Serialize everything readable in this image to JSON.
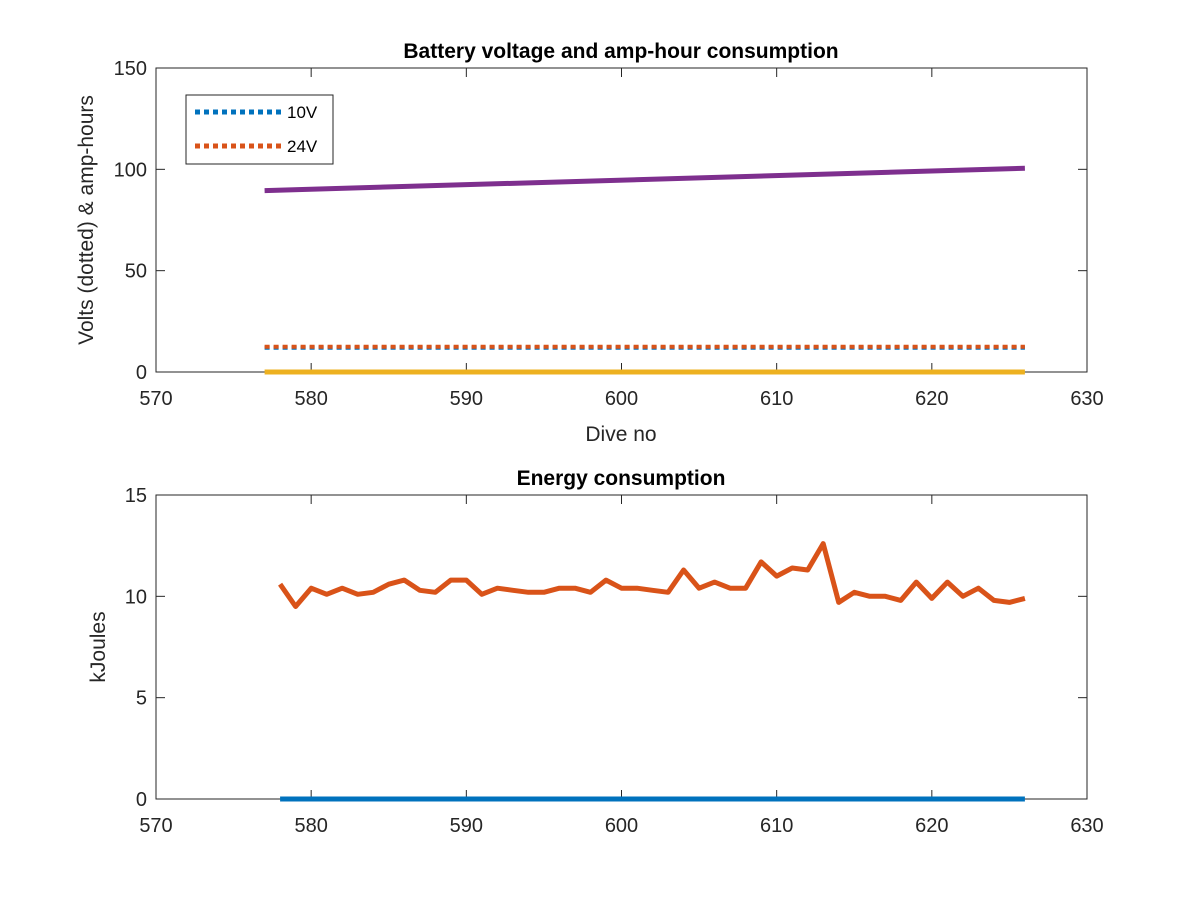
{
  "chart_data": [
    {
      "type": "line",
      "title": "Battery voltage and amp-hour consumption",
      "xlabel": "Dive no",
      "ylabel": "Volts (dotted) & amp-hours",
      "xlim": [
        570,
        630
      ],
      "ylim": [
        0,
        150
      ],
      "xticks": [
        "570",
        "580",
        "590",
        "600",
        "610",
        "620",
        "630"
      ],
      "yticks": [
        "0",
        "50",
        "100",
        "150"
      ],
      "grid": false,
      "legend_position": "top-left",
      "series": [
        {
          "name": "10V",
          "style": "dotted",
          "color": "#0072BD",
          "x": [
            577,
            626
          ],
          "y": [
            12,
            12
          ]
        },
        {
          "name": "24V",
          "style": "dotted",
          "color": "#D95319",
          "x": [
            577,
            626
          ],
          "y": [
            12.5,
            12.5
          ]
        },
        {
          "style": "solid",
          "color": "#7E2F8E",
          "x": [
            577,
            626
          ],
          "y": [
            89.5,
            100.5
          ]
        },
        {
          "style": "solid",
          "color": "#EDB120",
          "x": [
            577,
            626
          ],
          "y": [
            0,
            0
          ]
        }
      ]
    },
    {
      "type": "line",
      "title": "Energy consumption",
      "xlabel": "",
      "ylabel": "kJoules",
      "xlim": [
        570,
        630
      ],
      "ylim": [
        0,
        15
      ],
      "xticks": [
        "570",
        "580",
        "590",
        "600",
        "610",
        "620",
        "630"
      ],
      "yticks": [
        "0",
        "5",
        "10",
        "15"
      ],
      "grid": false,
      "series": [
        {
          "style": "solid",
          "color": "#0072BD",
          "x": [
            578,
            626
          ],
          "y": [
            0,
            0
          ]
        },
        {
          "style": "solid",
          "color": "#D95319",
          "x": [
            578,
            579,
            580,
            581,
            582,
            583,
            584,
            585,
            586,
            587,
            588,
            589,
            590,
            591,
            592,
            593,
            594,
            595,
            596,
            597,
            598,
            599,
            600,
            601,
            602,
            603,
            604,
            605,
            606,
            607,
            608,
            609,
            610,
            611,
            612,
            613,
            614,
            615,
            616,
            617,
            618,
            619,
            620,
            621,
            622,
            623,
            624,
            625,
            626
          ],
          "y": [
            10.6,
            9.5,
            10.4,
            10.1,
            10.4,
            10.1,
            10.2,
            10.6,
            10.8,
            10.3,
            10.2,
            10.8,
            10.8,
            10.1,
            10.4,
            10.3,
            10.2,
            10.2,
            10.4,
            10.4,
            10.2,
            10.8,
            10.4,
            10.4,
            10.3,
            10.2,
            11.3,
            10.4,
            10.7,
            10.4,
            10.4,
            11.7,
            11.0,
            11.4,
            11.3,
            12.6,
            9.7,
            10.2,
            10.0,
            10.0,
            9.8,
            10.7,
            9.9,
            10.7,
            10.0,
            10.4,
            9.8,
            9.7,
            9.9
          ]
        }
      ]
    }
  ]
}
